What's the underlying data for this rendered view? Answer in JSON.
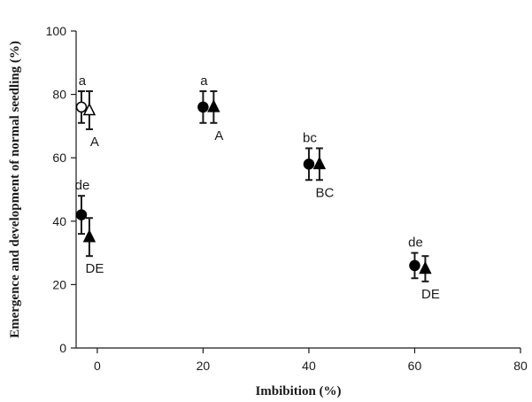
{
  "chart_data": {
    "type": "scatter",
    "title": "",
    "xlabel": "Imbibition (%)",
    "ylabel": "Emergence and development of normal seedling (%)",
    "xlim": [
      -4,
      80
    ],
    "ylim": [
      0,
      100
    ],
    "xticks": [
      "0",
      "20",
      "40",
      "60",
      "80"
    ],
    "yticks": [
      "0",
      "20",
      "40",
      "60",
      "80",
      "100"
    ],
    "grid": false,
    "legend": "none",
    "series": [
      {
        "marker": "circle",
        "color": "#000000",
        "points": [
          {
            "x": -3,
            "y": 76,
            "err": 5,
            "label": "a",
            "filled": false
          },
          {
            "x": 20,
            "y": 76,
            "err": 5,
            "label": "a",
            "filled": true
          },
          {
            "x": 40,
            "y": 58,
            "err": 5,
            "label": "bc",
            "filled": true
          },
          {
            "x": 60,
            "y": 26,
            "err": 4,
            "label": "de",
            "filled": true
          },
          {
            "x": -3,
            "y": 42,
            "err": 6,
            "label": "de",
            "filled": true
          }
        ]
      },
      {
        "marker": "triangle",
        "color": "#000000",
        "points": [
          {
            "x": -1.5,
            "y": 75,
            "err": 6,
            "label": "A",
            "filled": false
          },
          {
            "x": 22,
            "y": 76,
            "err": 5,
            "label": "A",
            "filled": true
          },
          {
            "x": 42,
            "y": 58,
            "err": 5,
            "label": "BC",
            "filled": true
          },
          {
            "x": 62,
            "y": 25,
            "err": 4,
            "label": "DE",
            "filled": true
          },
          {
            "x": -1.5,
            "y": 35,
            "err": 6,
            "label": "DE",
            "filled": true
          }
        ]
      }
    ]
  }
}
